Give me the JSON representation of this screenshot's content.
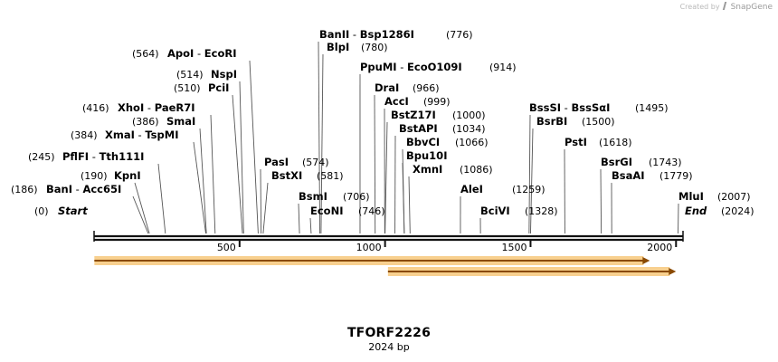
{
  "credit": {
    "text": "Created by",
    "brand": "SnapGene"
  },
  "title": "TFORF2226",
  "subtitle": "2024 bp",
  "colors": {
    "backbone": "#111111",
    "feature_fill": "#f5c06a",
    "feature_edge": "#8a4a00",
    "leader": "#555555"
  },
  "sequence_length": 2024,
  "start_label": "Start",
  "end_label": "End",
  "ticks": [
    {
      "pos": 500,
      "label": "500"
    },
    {
      "pos": 1000,
      "label": "1000"
    },
    {
      "pos": 1500,
      "label": "1500"
    },
    {
      "pos": 2000,
      "label": "2000"
    }
  ],
  "sites": [
    {
      "names": [
        "Start"
      ],
      "pos": 0,
      "pos_label": "(0)",
      "italic": true
    },
    {
      "names": [
        "BanI",
        "Acc65I"
      ],
      "pos": 186,
      "pos_label": "(186)"
    },
    {
      "names": [
        "KpnI"
      ],
      "pos": 190,
      "pos_label": "(190)"
    },
    {
      "names": [
        "PflFI",
        "Tth111I"
      ],
      "pos": 245,
      "pos_label": "(245)"
    },
    {
      "names": [
        "XmaI",
        "TspMI"
      ],
      "pos": 384,
      "pos_label": "(384)"
    },
    {
      "names": [
        "SmaI"
      ],
      "pos": 386,
      "pos_label": "(386)"
    },
    {
      "names": [
        "XhoI",
        "PaeR7I"
      ],
      "pos": 416,
      "pos_label": "(416)"
    },
    {
      "names": [
        "PciI"
      ],
      "pos": 510,
      "pos_label": "(510)"
    },
    {
      "names": [
        "NspI"
      ],
      "pos": 514,
      "pos_label": "(514)"
    },
    {
      "names": [
        "ApoI",
        "EcoRI"
      ],
      "pos": 564,
      "pos_label": "(564)"
    },
    {
      "names": [
        "PasI"
      ],
      "pos": 574,
      "pos_label": "(574)"
    },
    {
      "names": [
        "BstXI"
      ],
      "pos": 581,
      "pos_label": "(581)"
    },
    {
      "names": [
        "BsmI"
      ],
      "pos": 706,
      "pos_label": "(706)"
    },
    {
      "names": [
        "EcoNI"
      ],
      "pos": 746,
      "pos_label": "(746)"
    },
    {
      "names": [
        "BlpI"
      ],
      "pos": 780,
      "pos_label": "(780)"
    },
    {
      "names": [
        "BanII",
        "Bsp1286I"
      ],
      "pos": 776,
      "pos_label": "(776)"
    },
    {
      "names": [
        "PpuMI",
        "EcoO109I"
      ],
      "pos": 914,
      "pos_label": "(914)"
    },
    {
      "names": [
        "DraI"
      ],
      "pos": 966,
      "pos_label": "(966)"
    },
    {
      "names": [
        "AccI"
      ],
      "pos": 999,
      "pos_label": "(999)"
    },
    {
      "names": [
        "BstZ17I"
      ],
      "pos": 1000,
      "pos_label": "(1000)"
    },
    {
      "names": [
        "BstAPI"
      ],
      "pos": 1034,
      "pos_label": "(1034)"
    },
    {
      "names": [
        "BbvCI"
      ],
      "pos": 1066,
      "pos_label": "(1066)"
    },
    {
      "names": [
        "Bpu10I"
      ],
      "pos": 1066,
      "pos_label": ""
    },
    {
      "names": [
        "XmnI"
      ],
      "pos": 1086,
      "pos_label": "(1086)"
    },
    {
      "names": [
        "AleI"
      ],
      "pos": 1259,
      "pos_label": "(1259)"
    },
    {
      "names": [
        "BciVI"
      ],
      "pos": 1328,
      "pos_label": "(1328)"
    },
    {
      "names": [
        "BssSI",
        "BssSαI"
      ],
      "pos": 1495,
      "pos_label": "(1495)"
    },
    {
      "names": [
        "BsrBI"
      ],
      "pos": 1500,
      "pos_label": "(1500)"
    },
    {
      "names": [
        "PstI"
      ],
      "pos": 1618,
      "pos_label": "(1618)"
    },
    {
      "names": [
        "BsrGI"
      ],
      "pos": 1743,
      "pos_label": "(1743)"
    },
    {
      "names": [
        "BsaAI"
      ],
      "pos": 1779,
      "pos_label": "(1779)"
    },
    {
      "names": [
        "MluI"
      ],
      "pos": 2007,
      "pos_label": "(2007)"
    },
    {
      "names": [
        "End"
      ],
      "pos": 2024,
      "pos_label": "(2024)",
      "italic": true
    }
  ],
  "features": [
    {
      "start": 1,
      "end": 1910,
      "direction": "forward"
    },
    {
      "start": 1010,
      "end": 2000,
      "direction": "forward"
    }
  ]
}
